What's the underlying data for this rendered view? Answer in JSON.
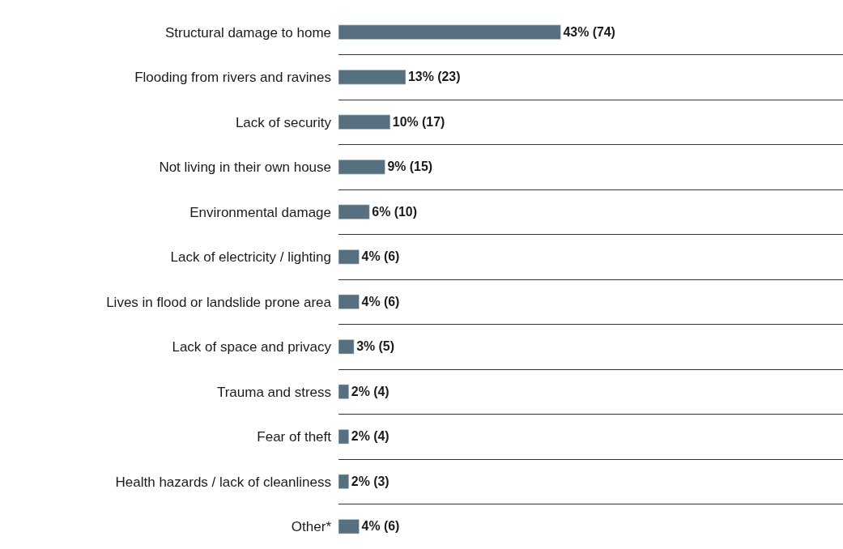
{
  "chart_data": {
    "type": "bar",
    "orientation": "horizontal",
    "categories": [
      "Structural damage to home",
      "Flooding from rivers and ravines",
      "Lack of security",
      "Not living in their own house",
      "Environmental damage",
      "Lack of electricity / lighting",
      "Lives in flood or landslide prone area",
      "Lack of space and privacy",
      "Trauma and stress",
      "Fear of theft",
      "Health hazards / lack of cleanliness",
      "Other*"
    ],
    "values": [
      43,
      13,
      10,
      9,
      6,
      4,
      4,
      3,
      2,
      2,
      2,
      4
    ],
    "value_labels": [
      "43% (74)",
      "13% (23)",
      "10% (17)",
      "9% (15)",
      "6% (10)",
      "4% (6)",
      "4% (6)",
      "3% (5)",
      "2% (4)",
      "2% (4)",
      "2% (3)",
      "4% (6)"
    ],
    "color": "#56707f",
    "grid": "y",
    "legend": false
  }
}
